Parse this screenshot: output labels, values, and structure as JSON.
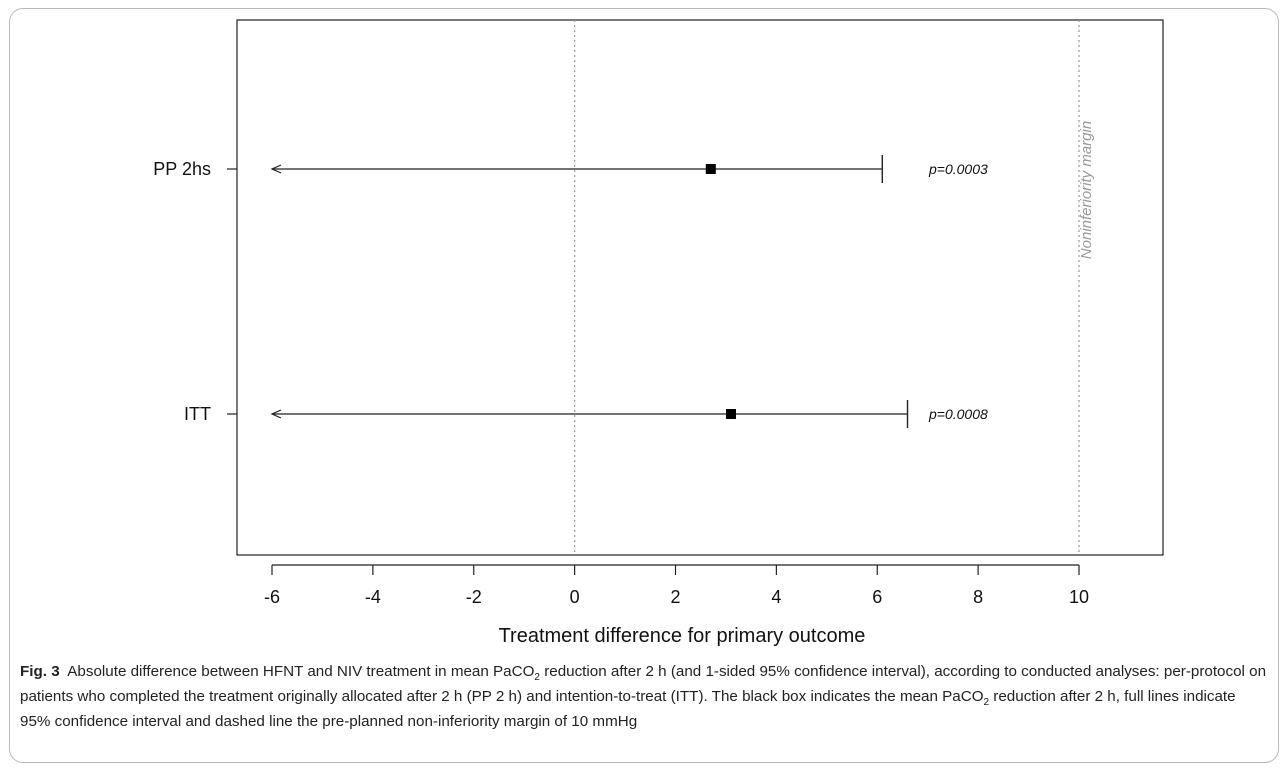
{
  "chart_data": {
    "type": "forest",
    "xlabel": "Treatment difference for primary outcome",
    "xlim": [
      -6.5,
      11.5
    ],
    "xticks": [
      -6,
      -4,
      -2,
      0,
      2,
      4,
      6,
      8,
      10
    ],
    "xtick_labels": [
      "-6",
      "-4",
      "-2",
      "0",
      "2",
      "4",
      "6",
      "8",
      "10"
    ],
    "reference_lines": [
      {
        "x": 0,
        "style": "dotted",
        "label": ""
      },
      {
        "x": 10,
        "style": "dotted",
        "label": "Noninferiority margin"
      }
    ],
    "rows": [
      {
        "label": "PP 2hs",
        "estimate": 2.7,
        "lower": -6.0,
        "upper": 6.1,
        "lower_arrow": true,
        "p_label": "p=0.0003"
      },
      {
        "label": "ITT",
        "estimate": 3.1,
        "lower": -6.0,
        "upper": 6.6,
        "lower_arrow": true,
        "p_label": "p=0.0008"
      }
    ]
  },
  "caption": {
    "fig_label": "Fig. 3",
    "segments": [
      {
        "t": "Absolute difference between HFNT and NIV treatment in mean PaCO"
      },
      {
        "sub": "2"
      },
      {
        "t": " reduction after 2 h (and 1-sided 95% confidence interval), according to conducted analyses: per-protocol on patients who completed the treatment originally allocated after 2 h (PP 2 h) and intention-to-treat (ITT). The black box indicates the mean PaCO"
      },
      {
        "sub": "2"
      },
      {
        "t": " reduction after 2 h, full lines indicate 95% confidence interval and dashed line the pre-planned non-inferiority margin of 10 mmHg"
      }
    ]
  }
}
